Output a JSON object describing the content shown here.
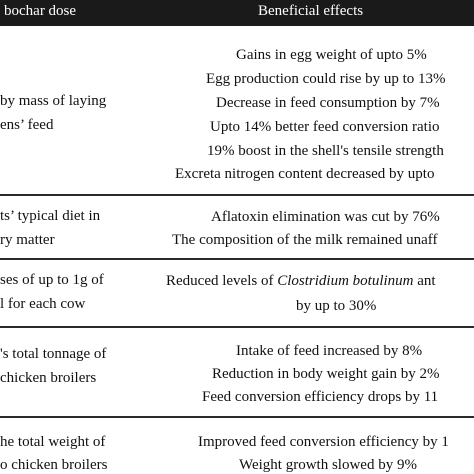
{
  "header": {
    "dose": "bochar dose",
    "effects": "Beneficial effects"
  },
  "rows": [
    {
      "dose_lines": [
        "by mass of laying",
        "ens’ feed"
      ],
      "effect_lines": [
        "Gains in egg weight of upto 5%",
        "Egg production could rise by up to 13%",
        "Decrease in feed consumption by 7%",
        "Upto 14% better feed conversion ratio",
        "19% boost in the shell's tensile strength",
        "Excreta nitrogen content decreased by upto"
      ]
    },
    {
      "dose_lines": [
        "ts’ typical diet in",
        "ry matter"
      ],
      "effect_lines": [
        "Aflatoxin elimination was cut by 76%",
        "The composition of the milk remained unaff"
      ]
    },
    {
      "dose_lines": [
        "ses of up to 1g of",
        "l for each cow"
      ],
      "effect_lines": [
        "Reduced levels of Clostridium botulinum ant",
        "by up to 30%"
      ]
    },
    {
      "dose_lines": [
        "'s total tonnage of",
        "chicken broilers"
      ],
      "effect_lines": [
        "Intake of feed increased by 8%",
        "Reduction in body weight gain by 2%",
        "Feed conversion efficiency drops by 11"
      ]
    },
    {
      "dose_lines": [
        "he total weight of",
        "o chicken broilers"
      ],
      "effect_lines": [
        "Improved feed conversion efficiency by 1",
        "Weight growth slowed by 9%"
      ]
    }
  ]
}
